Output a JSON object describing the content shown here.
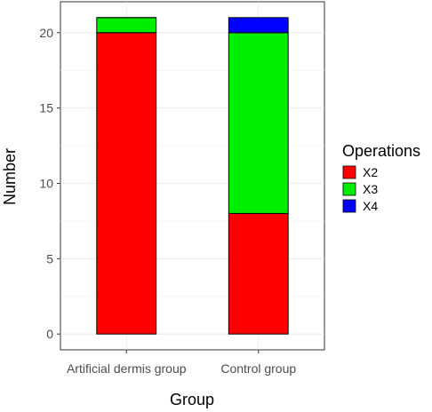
{
  "chart_data": {
    "type": "bar",
    "stacked": true,
    "categories": [
      "Artificial dermis group",
      "Control group"
    ],
    "series": [
      {
        "name": "X2",
        "color": "#ff0000",
        "values": [
          20,
          8
        ]
      },
      {
        "name": "X3",
        "color": "#00ee00",
        "values": [
          1,
          12
        ]
      },
      {
        "name": "X4",
        "color": "#0000ff",
        "values": [
          0,
          1
        ]
      }
    ],
    "xlabel": "Group",
    "ylabel": "Number",
    "ylim": [
      -1.05,
      22.05
    ],
    "yticks": [
      0,
      5,
      10,
      15,
      20
    ],
    "legend": {
      "title": "Operations",
      "position": "right"
    },
    "grid": true
  }
}
